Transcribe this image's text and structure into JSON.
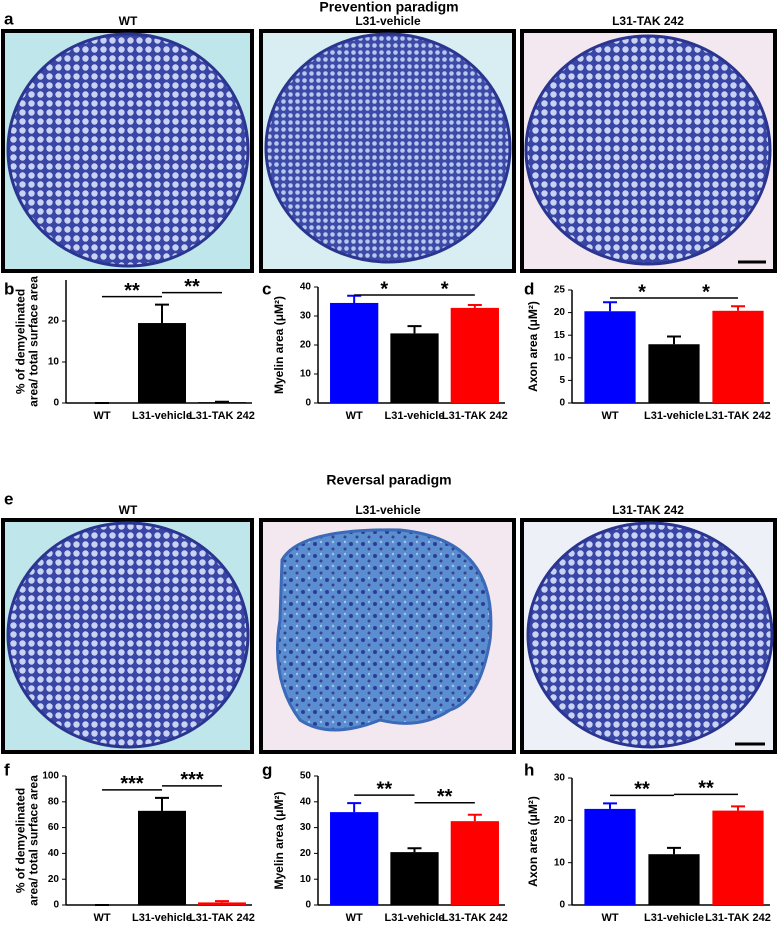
{
  "figure": {
    "titles": [
      "Prevention paradigm",
      "Reversal paradigm"
    ],
    "panel_letters": [
      "a",
      "b",
      "c",
      "d",
      "e",
      "f",
      "g",
      "h"
    ],
    "image_labels": {
      "prevention": [
        "WT",
        "L31-vehicle",
        "L31-TAK 242"
      ],
      "reversal": [
        "WT",
        "L31-vehicle",
        "L31-TAK 242"
      ]
    }
  },
  "chart_data": [
    {
      "type": "bar",
      "ylabel": [
        "% of demyelinated",
        "area/ total surface area"
      ],
      "categories": [
        "WT",
        "L31-vehicle",
        "L31-TAK 242"
      ],
      "values": [
        0,
        19.5,
        0.2
      ],
      "errors": [
        0,
        4.5,
        0.1
      ],
      "colors": [
        "#000000",
        "#000000",
        "#000000"
      ],
      "ylim": [
        0,
        30
      ],
      "yticks": [
        0,
        10,
        20
      ],
      "annotations": [
        "**",
        "**"
      ]
    },
    {
      "type": "bar",
      "ylabel": [
        "Myelin area (μM²)"
      ],
      "categories": [
        "WT",
        "L31-vehicle",
        "L31-TAK 242"
      ],
      "values": [
        34.5,
        24,
        32.8
      ],
      "errors": [
        2.5,
        2.5,
        1
      ],
      "colors": [
        "#0000ff",
        "#000000",
        "#ff0000"
      ],
      "ylim": [
        0,
        40
      ],
      "yticks": [
        0,
        10,
        20,
        30,
        40
      ],
      "annotations": [
        "*",
        "*"
      ]
    },
    {
      "type": "bar",
      "ylabel": [
        "Axon area (μM²)"
      ],
      "categories": [
        "WT",
        "L31-vehicle",
        "L31-TAK 242"
      ],
      "values": [
        20.3,
        13,
        20.4
      ],
      "errors": [
        2,
        1.7,
        1
      ],
      "colors": [
        "#0000ff",
        "#000000",
        "#ff0000"
      ],
      "ylim": [
        0,
        25
      ],
      "yticks": [
        0,
        5,
        10,
        15,
        20,
        25
      ],
      "annotations": [
        "*",
        "*"
      ]
    },
    {
      "type": "bar",
      "ylabel": [
        "% of demyelinated",
        "area/ total surface area"
      ],
      "categories": [
        "WT",
        "L31-vehicle",
        "L31-TAK 242"
      ],
      "values": [
        0,
        73,
        2
      ],
      "errors": [
        0,
        10,
        1
      ],
      "colors": [
        "#000000",
        "#000000",
        "#ff0000"
      ],
      "ylim": [
        0,
        100
      ],
      "yticks": [
        0,
        20,
        40,
        60,
        80,
        100
      ],
      "annotations": [
        "***",
        "***"
      ]
    },
    {
      "type": "bar",
      "ylabel": [
        "Myelin area (μM²)"
      ],
      "categories": [
        "WT",
        "L31-vehicle",
        "L31-TAK 242"
      ],
      "values": [
        36,
        20.5,
        32.5
      ],
      "errors": [
        3.5,
        1.5,
        2.5
      ],
      "colors": [
        "#0000ff",
        "#000000",
        "#ff0000"
      ],
      "ylim": [
        0,
        50
      ],
      "yticks": [
        0,
        10,
        20,
        30,
        40,
        50
      ],
      "annotations": [
        "**",
        "**"
      ]
    },
    {
      "type": "bar",
      "ylabel": [
        "Axon area (μM²)"
      ],
      "categories": [
        "WT",
        "L31-vehicle",
        "L31-TAK 242"
      ],
      "values": [
        22.7,
        12,
        22.3
      ],
      "errors": [
        1.3,
        1.5,
        1
      ],
      "colors": [
        "#0000ff",
        "#000000",
        "#ff0000"
      ],
      "ylim": [
        0,
        30
      ],
      "yticks": [
        0,
        10,
        20,
        30
      ],
      "annotations": [
        "**",
        "**"
      ]
    }
  ]
}
